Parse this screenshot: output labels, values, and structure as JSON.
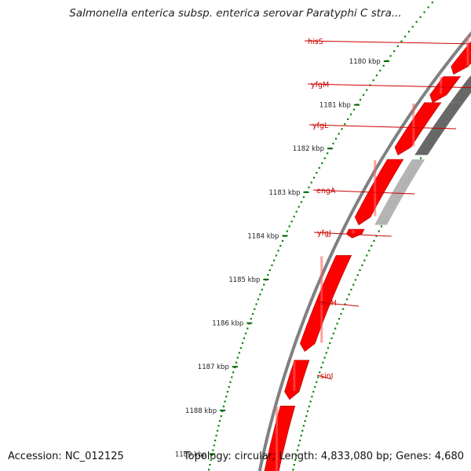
{
  "title": "Salmonella enterica subsp. enterica serovar Paratyphi C stra...",
  "footer": {
    "accession": "Accession: NC_012125",
    "topology": "Topology: circular; Length: 4,833,080 bp; Genes: 4,680"
  },
  "scale": {
    "ticks": [
      {
        "label": "1180 kbp",
        "kbp": 1180
      },
      {
        "label": "1181 kbp",
        "kbp": 1181
      },
      {
        "label": "1182 kbp",
        "kbp": 1182
      },
      {
        "label": "1183 kbp",
        "kbp": 1183
      },
      {
        "label": "1184 kbp",
        "kbp": 1184
      },
      {
        "label": "1185 kbp",
        "kbp": 1185
      },
      {
        "label": "1186 kbp",
        "kbp": 1186
      },
      {
        "label": "1187 kbp",
        "kbp": 1187
      },
      {
        "label": "1188 kbp",
        "kbp": 1188
      },
      {
        "label": "1189 kbp",
        "kbp": 1189
      }
    ]
  },
  "genes": [
    {
      "name": "hisS",
      "start_kbp": 1179.4,
      "end_kbp": 1180.3
    },
    {
      "name": "yfgM",
      "start_kbp": 1180.35,
      "end_kbp": 1180.95
    },
    {
      "name": "yfgL",
      "start_kbp": 1180.95,
      "end_kbp": 1182.15
    },
    {
      "name": "engA",
      "start_kbp": 1182.25,
      "end_kbp": 1183.75
    },
    {
      "name": "yfgJ",
      "start_kbp": 1183.85,
      "end_kbp": 1184.05
    },
    {
      "name": "sinH",
      "start_kbp": 1184.45,
      "end_kbp": 1186.65
    },
    {
      "name": "sinI",
      "start_kbp": 1186.85,
      "end_kbp": 1187.75
    },
    {
      "name": "",
      "start_kbp": 1187.9,
      "end_kbp": 1189.6
    }
  ],
  "colors": {
    "cds": "#ff0000",
    "cds_light": "#ff8080",
    "label": "#cc0000",
    "tick_dots": "#008800",
    "backbone": "#808080",
    "similarity_dark": "#606060",
    "similarity_light": "#b0b0b0",
    "similarity_top": "#7d6bd1"
  }
}
